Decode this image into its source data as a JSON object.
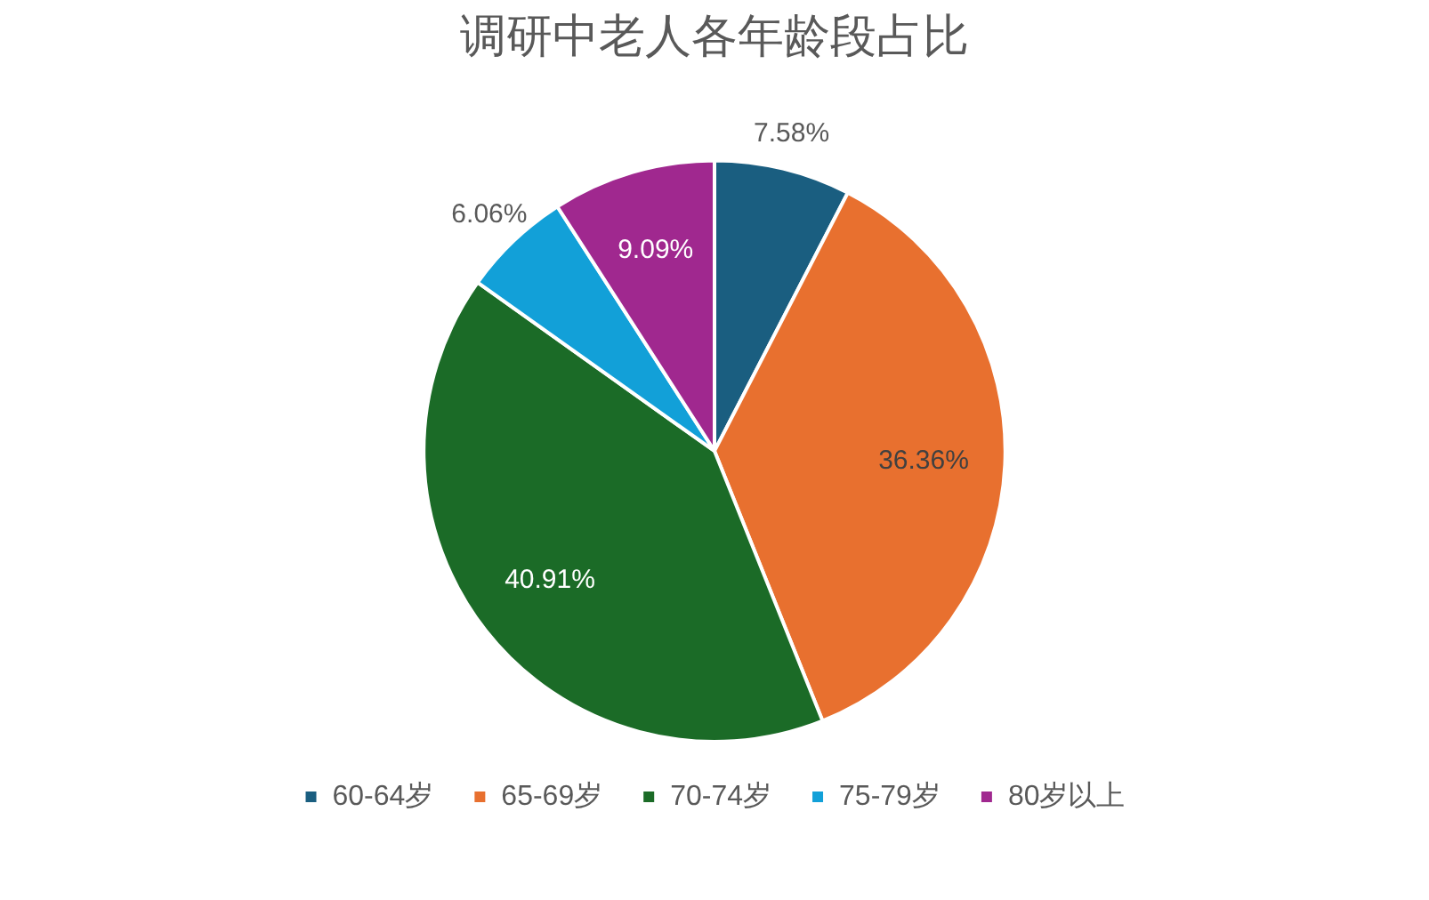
{
  "chart_data": {
    "type": "pie",
    "title": "调研中老人各年龄段占比",
    "categories": [
      "60-64岁",
      "65-69岁",
      "70-74岁",
      "75-79岁",
      "80岁以上"
    ],
    "values": [
      7.58,
      36.36,
      40.91,
      6.06,
      9.09
    ],
    "value_labels": [
      "7.58%",
      "36.36%",
      "40.91%",
      "6.06%",
      "9.09%"
    ],
    "colors": [
      "#1a5e80",
      "#e8702f",
      "#1b6b27",
      "#12a0d8",
      "#a0288f"
    ],
    "legend": "bottom"
  }
}
